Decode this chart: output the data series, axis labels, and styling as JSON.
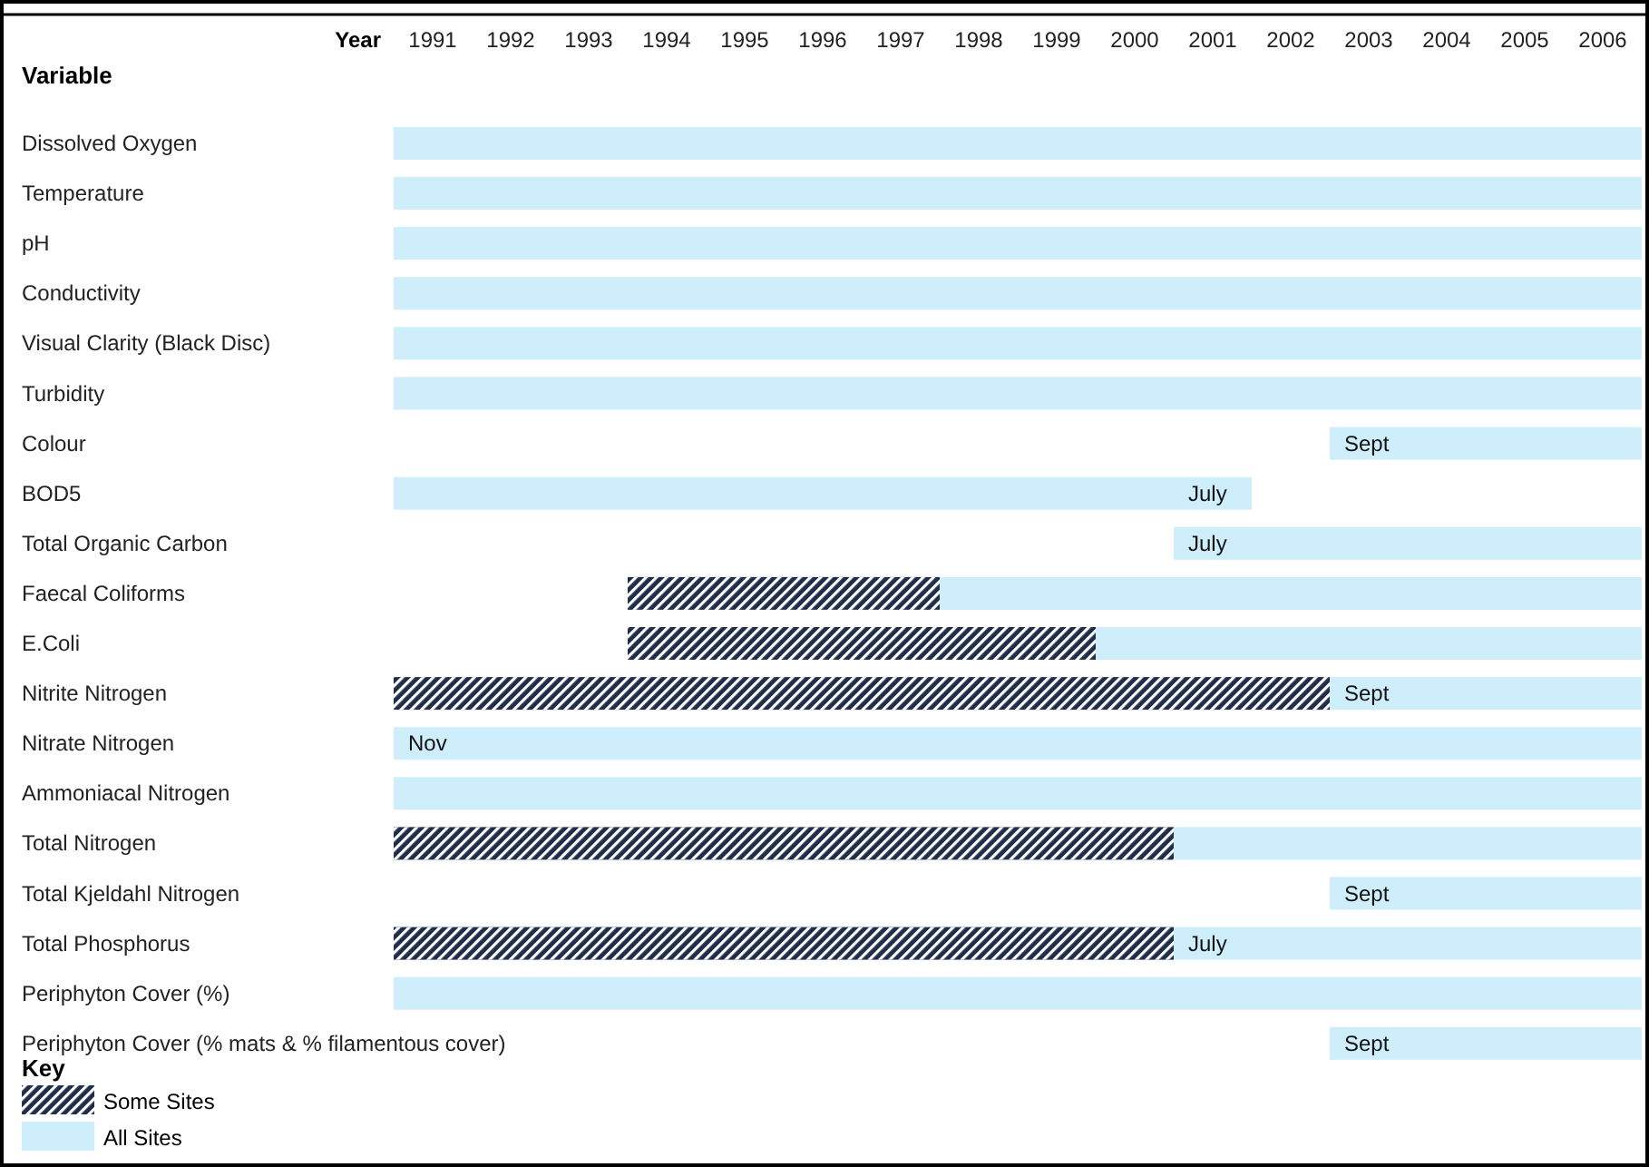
{
  "chart_data": {
    "type": "bar",
    "orientation": "horizontal",
    "xlabel": "Year",
    "ylabel": "Variable",
    "legend_title": "Key",
    "legend": "bottom left",
    "categories": [
      "Dissolved Oxygen",
      "Temperature",
      "pH",
      "Conductivity",
      "Visual Clarity (Black Disc)",
      "Turbidity",
      "Colour",
      "BOD5",
      "Total Organic Carbon",
      "Faecal Coliforms",
      "E.Coli",
      "Nitrite Nitrogen",
      "Nitrate Nitrogen",
      "Ammoniacal Nitrogen",
      "Total Nitrogen",
      "Total Kjeldahl Nitrogen",
      "Total Phosphorus",
      "Periphyton Cover (%)",
      "Periphyton Cover (% mats & % filamentous cover)"
    ],
    "series": [
      {
        "name": "Some Sites",
        "color": "#1f2d4a",
        "base": [
          null,
          null,
          null,
          null,
          null,
          null,
          null,
          null,
          null,
          1994,
          1994,
          1991,
          null,
          null,
          1991,
          null,
          1991,
          null,
          null
        ],
        "values": [
          null,
          null,
          null,
          null,
          null,
          null,
          null,
          null,
          null,
          4,
          6,
          12,
          null,
          null,
          10,
          null,
          10,
          null,
          null
        ]
      },
      {
        "name": "All Sites",
        "color": "#cdeefa",
        "base": [
          1991,
          1991,
          1991,
          1991,
          1991,
          1991,
          2003,
          1991,
          2001,
          1998,
          2000,
          2003,
          1991,
          1991,
          2001,
          2003,
          2001,
          1991,
          2003
        ],
        "values": [
          16,
          16,
          16,
          16,
          16,
          16,
          4,
          11,
          6,
          9,
          7,
          4,
          16,
          16,
          6,
          4,
          6,
          16,
          4
        ]
      }
    ],
    "xlim": [
      1991,
      2007
    ],
    "xticks": [
      {
        "value": 1991.5,
        "label": "1991"
      },
      {
        "value": 1992.5,
        "label": "1992"
      },
      {
        "value": 1993.5,
        "label": "1993"
      },
      {
        "value": 1994.5,
        "label": "1994"
      },
      {
        "value": 1995.5,
        "label": "1995"
      },
      {
        "value": 1996.5,
        "label": "1996"
      },
      {
        "value": 1997.5,
        "label": "1997"
      },
      {
        "value": 1998.5,
        "label": "1998"
      },
      {
        "value": 1999.5,
        "label": "1999"
      },
      {
        "value": 2000.5,
        "label": "2000"
      },
      {
        "value": 2001.5,
        "label": "2001"
      },
      {
        "value": 2002.5,
        "label": "2002"
      },
      {
        "value": 2003.5,
        "label": "2003"
      },
      {
        "value": 2004.5,
        "label": "2004"
      },
      {
        "value": 2005.5,
        "label": "2005"
      },
      {
        "value": 2006.5,
        "label": "2006"
      }
    ],
    "annotations": [
      {
        "text": "Sept",
        "x": 2003,
        "y": "Colour"
      },
      {
        "text": "July",
        "x": 2001,
        "y": "BOD5"
      },
      {
        "text": "July",
        "x": 2001,
        "y": "Total Organic Carbon"
      },
      {
        "text": "Sept",
        "x": 2003,
        "y": "Nitrite Nitrogen"
      },
      {
        "text": "Nov",
        "x": 1991,
        "y": "Nitrate Nitrogen"
      },
      {
        "text": "Sept",
        "x": 2003,
        "y": "Total Kjeldahl Nitrogen"
      },
      {
        "text": "July",
        "x": 2001,
        "y": "Total Phosphorus"
      },
      {
        "text": "Sept",
        "x": 2003,
        "y": "Periphyton Cover (% mats & % filamentous cover)"
      }
    ]
  }
}
